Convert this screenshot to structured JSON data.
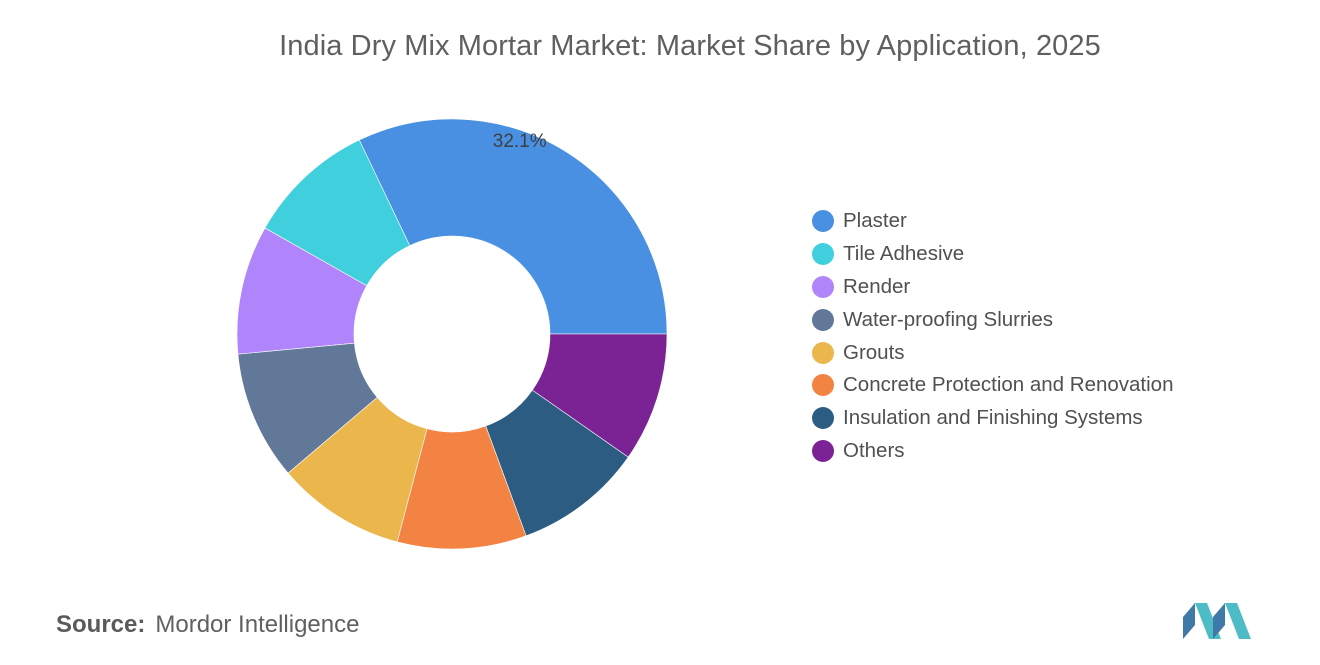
{
  "title": "India Dry Mix Mortar Market: Market Share by Application, 2025",
  "source": {
    "label": "Source:",
    "value": "Mordor Intelligence"
  },
  "chart_data": {
    "type": "pie",
    "variant": "donut",
    "title": "India Dry Mix Mortar Market: Market Share by Application, 2025",
    "legend_position": "right",
    "unit": "%",
    "categories": [
      "Plaster",
      "Tile Adhesive",
      "Render",
      "Water-proofing Slurries",
      "Grouts",
      "Concrete Protection and Renovation",
      "Insulation and Finishing Systems",
      "Others"
    ],
    "values": [
      32.1,
      9.7,
      9.7,
      9.7,
      9.7,
      9.7,
      9.7,
      9.7
    ],
    "colors": [
      "#4a90e2",
      "#40cfdc",
      "#b084fa",
      "#627899",
      "#ebb64c",
      "#f28343",
      "#2d5c82",
      "#7b2395"
    ],
    "data_labels": [
      {
        "category": "Plaster",
        "text": "32.1%"
      }
    ]
  }
}
